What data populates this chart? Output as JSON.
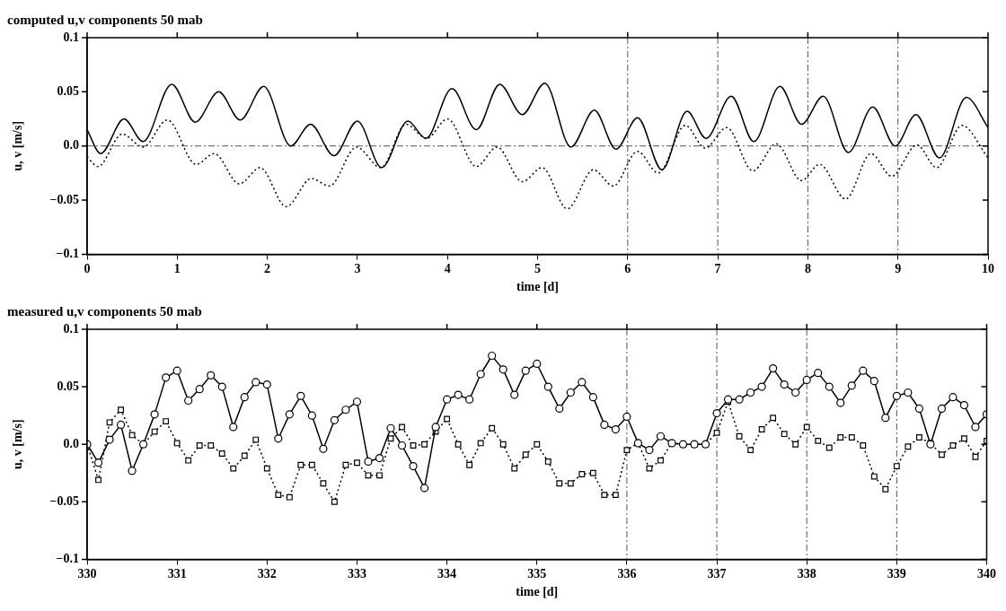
{
  "chart_data": [
    {
      "type": "line",
      "title": "computed u,v components 50 mab",
      "xlabel": "time [d]",
      "ylabel": "u, v [m/s]",
      "xlim": [
        0,
        10
      ],
      "xticks": [
        0,
        1,
        2,
        3,
        4,
        5,
        6,
        7,
        8,
        9,
        10
      ],
      "ylim": [
        -0.1,
        0.1
      ],
      "yticks": [
        {
          "value": -0.1,
          "label": "−0.1"
        },
        {
          "value": -0.05,
          "label": "−0.05"
        },
        {
          "value": 0,
          "label": "0.0"
        },
        {
          "value": 0.05,
          "label": "0.05"
        },
        {
          "value": 0.1,
          "label": "0.1"
        }
      ],
      "grid": false,
      "legend": false,
      "series": [
        {
          "color": "#000000",
          "marker": "none",
          "line_style": "solid",
          "x": [
            0,
            0.15,
            0.41,
            0.62,
            0.94,
            1.2,
            1.46,
            1.7,
            1.96,
            2.26,
            2.48,
            2.74,
            3,
            3.27,
            3.56,
            3.76,
            4.05,
            4.32,
            4.58,
            4.83,
            5.08,
            5.37,
            5.63,
            5.87,
            6.11,
            6.38,
            6.66,
            6.87,
            7.15,
            7.4,
            7.69,
            7.93,
            8.17,
            8.45,
            8.72,
            8.97,
            9.2,
            9.46,
            9.76,
            10
          ],
          "values": [
            0.015,
            -0.007,
            0.025,
            0.004,
            0.057,
            0.022,
            0.05,
            0.024,
            0.055,
            0,
            0.02,
            -0.009,
            0.023,
            -0.02,
            0.023,
            0.007,
            0.053,
            0.015,
            0.057,
            0.029,
            0.058,
            -0.001,
            0.033,
            -0.003,
            0.026,
            -0.022,
            0.032,
            0.007,
            0.046,
            0.004,
            0.055,
            0.02,
            0.046,
            -0.006,
            0.036,
            0,
            0.029,
            -0.011,
            0.045,
            0.017
          ]
        },
        {
          "color": "#000000",
          "marker": "none",
          "line_style": "dotted",
          "x": [
            0,
            0.12,
            0.39,
            0.62,
            0.89,
            1.21,
            1.41,
            1.69,
            1.92,
            2.21,
            2.49,
            2.69,
            2.99,
            3.26,
            3.54,
            3.77,
            4,
            4.32,
            4.55,
            4.83,
            5.05,
            5.33,
            5.62,
            5.84,
            6.11,
            6.34,
            6.64,
            6.86,
            7.1,
            7.39,
            7.65,
            7.93,
            8.13,
            8.42,
            8.7,
            8.93,
            9.21,
            9.43,
            9.71,
            10
          ],
          "values": [
            -0.01,
            -0.019,
            0.011,
            -0.001,
            0.024,
            -0.017,
            -0.007,
            -0.035,
            -0.02,
            -0.056,
            -0.03,
            -0.037,
            -0.001,
            -0.02,
            0.02,
            0.007,
            0.025,
            -0.019,
            -0.001,
            -0.033,
            -0.02,
            -0.058,
            -0.022,
            -0.037,
            -0.005,
            -0.025,
            0.019,
            -0.002,
            0.017,
            -0.023,
            0.002,
            -0.032,
            -0.017,
            -0.049,
            -0.007,
            -0.028,
            0.001,
            -0.02,
            0.019,
            -0.011
          ]
        }
      ],
      "ref_lines": [
        {
          "axis": "y",
          "value": 0,
          "label": null,
          "color": "#555555",
          "line_style": "dashed"
        },
        {
          "axis": "x",
          "value": 6,
          "label": null,
          "color": "#555555",
          "line_style": "dashed"
        },
        {
          "axis": "x",
          "value": 7,
          "label": null,
          "color": "#555555",
          "line_style": "dashed"
        },
        {
          "axis": "x",
          "value": 8,
          "label": null,
          "color": "#555555",
          "line_style": "dashed"
        },
        {
          "axis": "x",
          "value": 9,
          "label": null,
          "color": "#555555",
          "line_style": "dashed"
        }
      ]
    },
    {
      "type": "line",
      "title": "measured u,v components 50 mab",
      "xlabel": "time [d]",
      "ylabel": "u, v [m/s]",
      "xlim": [
        330,
        340
      ],
      "xticks": [
        330,
        331,
        332,
        333,
        334,
        335,
        336,
        337,
        338,
        339,
        340
      ],
      "ylim": [
        -0.1,
        0.1
      ],
      "yticks": [
        {
          "value": -0.1,
          "label": "−0.1"
        },
        {
          "value": -0.05,
          "label": "−0.05"
        },
        {
          "value": 0,
          "label": "0.0"
        },
        {
          "value": 0.05,
          "label": "0.05"
        },
        {
          "value": 0.1,
          "label": "0.1"
        }
      ],
      "grid": false,
      "legend": false,
      "x": [
        330,
        330.125,
        330.25,
        330.375,
        330.5,
        330.625,
        330.75,
        330.875,
        331,
        331.125,
        331.25,
        331.375,
        331.5,
        331.625,
        331.75,
        331.875,
        332,
        332.125,
        332.25,
        332.375,
        332.5,
        332.625,
        332.75,
        332.875,
        333,
        333.125,
        333.25,
        333.375,
        333.5,
        333.625,
        333.75,
        333.875,
        334,
        334.125,
        334.25,
        334.375,
        334.5,
        334.625,
        334.75,
        334.875,
        335,
        335.125,
        335.25,
        335.375,
        335.5,
        335.625,
        335.75,
        335.875,
        336,
        336.125,
        336.25,
        336.375,
        336.5,
        336.625,
        336.75,
        336.875,
        337,
        337.125,
        337.25,
        337.375,
        337.5,
        337.625,
        337.75,
        337.875,
        338,
        338.125,
        338.25,
        338.375,
        338.5,
        338.625,
        338.75,
        338.875,
        339,
        339.125,
        339.25,
        339.375,
        339.5,
        339.625,
        339.75,
        339.875,
        340
      ],
      "series": [
        {
          "color": "#000000",
          "marker": "circle",
          "line_style": "solid",
          "values": [
            0,
            -0.016,
            0.004,
            0.017,
            -0.023,
            0,
            0.026,
            0.058,
            0.064,
            0.038,
            0.048,
            0.06,
            0.05,
            0.015,
            0.041,
            0.054,
            0.052,
            0.005,
            0.026,
            0.042,
            0.025,
            -0.004,
            0.021,
            0.03,
            0.037,
            -0.015,
            -0.012,
            0.014,
            -0.001,
            -0.019,
            -0.038,
            0.015,
            0.039,
            0.043,
            0.039,
            0.061,
            0.077,
            0.065,
            0.043,
            0.064,
            0.07,
            0.05,
            0.031,
            0.045,
            0.054,
            0.041,
            0.017,
            0.013,
            0.024,
            0.001,
            -0.005,
            0.007,
            0.001,
            0,
            0,
            0,
            0.027,
            0.039,
            0.039,
            0.045,
            0.05,
            0.066,
            0.052,
            0.045,
            0.056,
            0.062,
            0.05,
            0.036,
            0.051,
            0.064,
            0.055,
            0.023,
            0.042,
            0.045,
            0.031,
            0,
            0.031,
            0.041,
            0.034,
            0.015,
            0.026
          ]
        },
        {
          "color": "#000000",
          "marker": "square",
          "line_style": "dotted",
          "values": [
            0,
            -0.031,
            0.019,
            0.03,
            0.008,
            0,
            0.011,
            0.02,
            0.001,
            -0.014,
            -0.001,
            -0.001,
            -0.008,
            -0.021,
            -0.01,
            0.004,
            -0.021,
            -0.044,
            -0.046,
            -0.018,
            -0.018,
            -0.034,
            -0.05,
            -0.018,
            -0.016,
            -0.027,
            -0.027,
            0.005,
            0.015,
            -0.001,
            0,
            0.011,
            0.022,
            0,
            -0.018,
            0.001,
            0.014,
            0,
            -0.021,
            -0.009,
            0,
            -0.015,
            -0.034,
            -0.034,
            -0.026,
            -0.025,
            -0.044,
            -0.044,
            -0.005,
            0.001,
            -0.021,
            -0.014,
            0.001,
            0,
            0,
            0,
            0.01,
            0.037,
            0.007,
            -0.005,
            0.013,
            0.023,
            0.009,
            0,
            0.015,
            0.003,
            -0.003,
            0.006,
            0.006,
            -0.001,
            -0.028,
            -0.039,
            -0.019,
            -0.002,
            0.006,
            0.001,
            -0.009,
            -0.001,
            0.005,
            -0.011,
            0.003
          ]
        }
      ],
      "ref_lines": [
        {
          "axis": "x",
          "value": 336,
          "label": null,
          "color": "#555555",
          "line_style": "dashed"
        },
        {
          "axis": "x",
          "value": 337,
          "label": null,
          "color": "#555555",
          "line_style": "dashed"
        },
        {
          "axis": "x",
          "value": 338,
          "label": null,
          "color": "#555555",
          "line_style": "dashed"
        },
        {
          "axis": "x",
          "value": 339,
          "label": null,
          "color": "#555555",
          "line_style": "dashed"
        }
      ]
    }
  ]
}
